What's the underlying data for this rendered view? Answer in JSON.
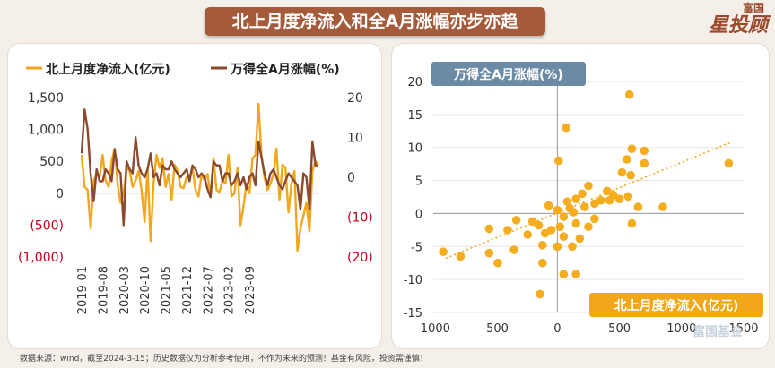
{
  "title": "北上月度净流入和全A月涨幅亦步亦趋",
  "brand": {
    "small": "富国",
    "big": "星投顾"
  },
  "watermark": "富国基金",
  "footnote": "数据来源：wind，截至2024-3-15；历史数据仅为分析参考使用，不作为未来的预测！基金有风险，投资需谨慎！",
  "colors": {
    "inflow": "#f2a71b",
    "return": "#8b4a2e",
    "negative": "#c0001b",
    "scatter": "#f5ad20",
    "trend": "#f2a71b",
    "label_blue": "#6b8aa5",
    "label_orange": "#f2a71b"
  },
  "chart_data": [
    {
      "type": "line",
      "legend": [
        "北上月度净流入(亿元)",
        "万得全A月涨幅(%)"
      ],
      "legend_placement": "top",
      "y_left": {
        "ticks": [
          "1,500",
          "1,000",
          "500",
          "0",
          "(500)",
          "(1,000)"
        ],
        "range": [
          -1000,
          1500
        ]
      },
      "y_right": {
        "ticks": [
          "20",
          "10",
          "0",
          "(10)",
          "(20)"
        ],
        "range": [
          -20,
          20
        ]
      },
      "x_ticks": [
        "2019-01",
        "2019-08",
        "2020-03",
        "2020-10",
        "2021-05",
        "2021-12",
        "2022-07",
        "2023-02",
        "2023-09"
      ],
      "x_start": "2019-01",
      "series": [
        {
          "name": "北上月度净流入(亿元)",
          "axis": "left",
          "values": [
            600,
            100,
            50,
            -550,
            200,
            300,
            250,
            600,
            200,
            100,
            500,
            700,
            150,
            -150,
            0,
            400,
            350,
            100,
            200,
            350,
            50,
            -450,
            400,
            -750,
            150,
            600,
            400,
            550,
            100,
            300,
            -100,
            450,
            350,
            100,
            80,
            250,
            250,
            400,
            50,
            -50,
            300,
            200,
            300,
            -50,
            550,
            50,
            20,
            200,
            150,
            600,
            -50,
            0,
            400,
            -500,
            -200,
            150,
            0,
            550,
            600,
            1400,
            600,
            250,
            50,
            150,
            300,
            700,
            -100,
            450,
            400,
            -300,
            150,
            350,
            -900,
            -550,
            -350,
            -150,
            -600,
            350,
            500,
            450
          ]
        },
        {
          "name": "万得全A月涨幅(%)",
          "axis": "right",
          "values": [
            6,
            17,
            12,
            1,
            -6,
            2,
            -1,
            -1,
            2,
            1,
            -1,
            7,
            2,
            1,
            -12,
            4,
            2,
            1,
            10,
            3,
            1,
            0,
            2,
            6,
            0,
            1,
            -2,
            3,
            2,
            2,
            4,
            2,
            1,
            0,
            1,
            2,
            -1,
            3,
            2,
            0,
            1,
            0,
            -3,
            -5,
            4,
            3,
            3,
            -1,
            1,
            1,
            -2,
            -1,
            1,
            -2,
            0,
            -3,
            0,
            1,
            -2,
            9,
            5,
            1,
            -2,
            1,
            2,
            0,
            -2,
            -3,
            -1,
            1,
            0,
            -1,
            -2,
            -8,
            1,
            0,
            -8,
            9,
            3,
            3
          ]
        }
      ]
    },
    {
      "type": "scatter",
      "xlabel": "北上月度净流入(亿元)",
      "ylabel": "万得全A月涨幅(%)",
      "xlim": [
        -1000,
        1500
      ],
      "ylim": [
        -15,
        20
      ],
      "x_ticks": [
        "-1000",
        "-500",
        "0",
        "500",
        "1000",
        "1500"
      ],
      "y_ticks": [
        "20",
        "15",
        "10",
        "5",
        "0",
        "-5",
        "-10",
        "-15"
      ],
      "grid": "horizontal",
      "trendline": {
        "x": [
          -900,
          1400
        ],
        "y": [
          -6.8,
          10.8
        ]
      },
      "points": [
        {
          "x": 580,
          "y": 18
        },
        {
          "x": 70,
          "y": 13
        },
        {
          "x": 600,
          "y": 9.8
        },
        {
          "x": 700,
          "y": 9.5
        },
        {
          "x": 560,
          "y": 8.2
        },
        {
          "x": 10,
          "y": 8
        },
        {
          "x": 700,
          "y": 7.6
        },
        {
          "x": 1380,
          "y": 7.6
        },
        {
          "x": 520,
          "y": 6.2
        },
        {
          "x": 590,
          "y": 5.8
        },
        {
          "x": 250,
          "y": 4.2
        },
        {
          "x": 400,
          "y": 3.4
        },
        {
          "x": 200,
          "y": 3.0
        },
        {
          "x": 450,
          "y": 2.8
        },
        {
          "x": 570,
          "y": 2.6
        },
        {
          "x": 500,
          "y": 2.2
        },
        {
          "x": 350,
          "y": 2.0
        },
        {
          "x": 420,
          "y": 2.0
        },
        {
          "x": 150,
          "y": 2.2
        },
        {
          "x": 80,
          "y": 1.8
        },
        {
          "x": 300,
          "y": 1.5
        },
        {
          "x": 220,
          "y": 1.0
        },
        {
          "x": 650,
          "y": 1.0
        },
        {
          "x": 850,
          "y": 1.0
        },
        {
          "x": -70,
          "y": 1.2
        },
        {
          "x": 0,
          "y": 0.5
        },
        {
          "x": 100,
          "y": 0.8
        },
        {
          "x": 130,
          "y": 0.2
        },
        {
          "x": 50,
          "y": -0.5
        },
        {
          "x": 300,
          "y": -0.8
        },
        {
          "x": -200,
          "y": -1.2
        },
        {
          "x": -330,
          "y": -1.0
        },
        {
          "x": -150,
          "y": -1.8
        },
        {
          "x": 20,
          "y": -2.0
        },
        {
          "x": 150,
          "y": -1.5
        },
        {
          "x": 250,
          "y": -2.0
        },
        {
          "x": 600,
          "y": -1.5
        },
        {
          "x": -50,
          "y": -2.5
        },
        {
          "x": -100,
          "y": -3.0
        },
        {
          "x": 50,
          "y": -3.5
        },
        {
          "x": 180,
          "y": -3.8
        },
        {
          "x": -240,
          "y": -3.2
        },
        {
          "x": -400,
          "y": -2.5
        },
        {
          "x": -550,
          "y": -2.3
        },
        {
          "x": -120,
          "y": -4.8
        },
        {
          "x": 0,
          "y": -5.0
        },
        {
          "x": 120,
          "y": -5.0
        },
        {
          "x": -350,
          "y": -5.5
        },
        {
          "x": -550,
          "y": -6.0
        },
        {
          "x": -780,
          "y": -6.5
        },
        {
          "x": -920,
          "y": -5.8
        },
        {
          "x": -480,
          "y": -7.5
        },
        {
          "x": -120,
          "y": -7.5
        },
        {
          "x": 150,
          "y": -9.2
        },
        {
          "x": 50,
          "y": -9.2
        },
        {
          "x": -140,
          "y": -12.2
        }
      ]
    }
  ]
}
